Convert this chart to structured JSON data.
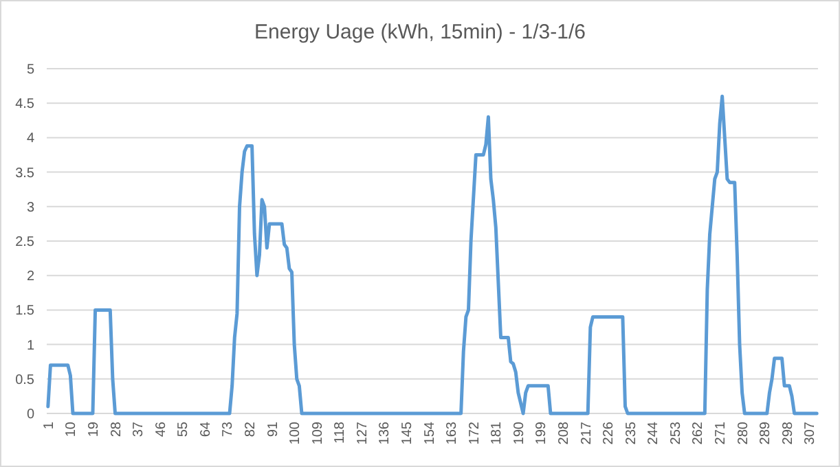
{
  "chart_data": {
    "type": "line",
    "title": "Energy Uage (kWh, 15min) - 1/3-1/6",
    "xlim": [
      0.5,
      310.5
    ],
    "xticks": [
      1,
      10,
      19,
      28,
      37,
      46,
      55,
      64,
      73,
      82,
      91,
      100,
      109,
      118,
      127,
      136,
      145,
      154,
      163,
      172,
      181,
      190,
      199,
      208,
      217,
      226,
      235,
      244,
      253,
      262,
      271,
      280,
      289,
      298,
      307
    ],
    "ylim": [
      0,
      5
    ],
    "yticks": [
      0,
      0.5,
      1,
      1.5,
      2,
      2.5,
      3,
      3.5,
      4,
      4.5,
      5
    ],
    "grid": "y",
    "marker": "none",
    "line_style": "solid",
    "series": [
      {
        "color": "#5b9bd5",
        "x": [
          1,
          2,
          9,
          10,
          11,
          19,
          20,
          26,
          27,
          28,
          74,
          75,
          76,
          77,
          78,
          79,
          80,
          81,
          83,
          84,
          85,
          86,
          87,
          88,
          89,
          90,
          95,
          96,
          97,
          98,
          99,
          100,
          101,
          102,
          103,
          167,
          168,
          169,
          170,
          171,
          173,
          176,
          177,
          178,
          179,
          180,
          181,
          183,
          186,
          187,
          188,
          189,
          190,
          192,
          193,
          194,
          202,
          203,
          218,
          219,
          220,
          232,
          233,
          234,
          265,
          266,
          267,
          268,
          269,
          270,
          271,
          272,
          273,
          274,
          275,
          277,
          278,
          279,
          280,
          281,
          290,
          291,
          292,
          293,
          296,
          297,
          299,
          300,
          301,
          310
        ],
        "values": [
          0.1,
          0.7,
          0.7,
          0.55,
          0,
          0,
          1.5,
          1.5,
          0.5,
          0,
          0,
          0.4,
          1.1,
          1.45,
          3,
          3.5,
          3.8,
          3.88,
          3.88,
          2.6,
          2,
          2.3,
          3.1,
          3,
          2.4,
          2.75,
          2.75,
          2.45,
          2.4,
          2.1,
          2.05,
          1,
          0.5,
          0.4,
          0,
          0,
          0.9,
          1.4,
          1.5,
          2.5,
          3.75,
          3.75,
          3.9,
          4.3,
          3.4,
          3.1,
          2.7,
          1.1,
          1.1,
          0.75,
          0.72,
          0.6,
          0.3,
          0,
          0.3,
          0.4,
          0.4,
          0,
          0,
          1.25,
          1.4,
          1.4,
          0.1,
          0,
          0,
          1.8,
          2.6,
          3,
          3.4,
          3.5,
          4.2,
          4.6,
          4,
          3.4,
          3.35,
          3.35,
          2.3,
          1,
          0.3,
          0,
          0,
          0.3,
          0.5,
          0.8,
          0.8,
          0.4,
          0.4,
          0.25,
          0,
          0
        ]
      }
    ]
  }
}
